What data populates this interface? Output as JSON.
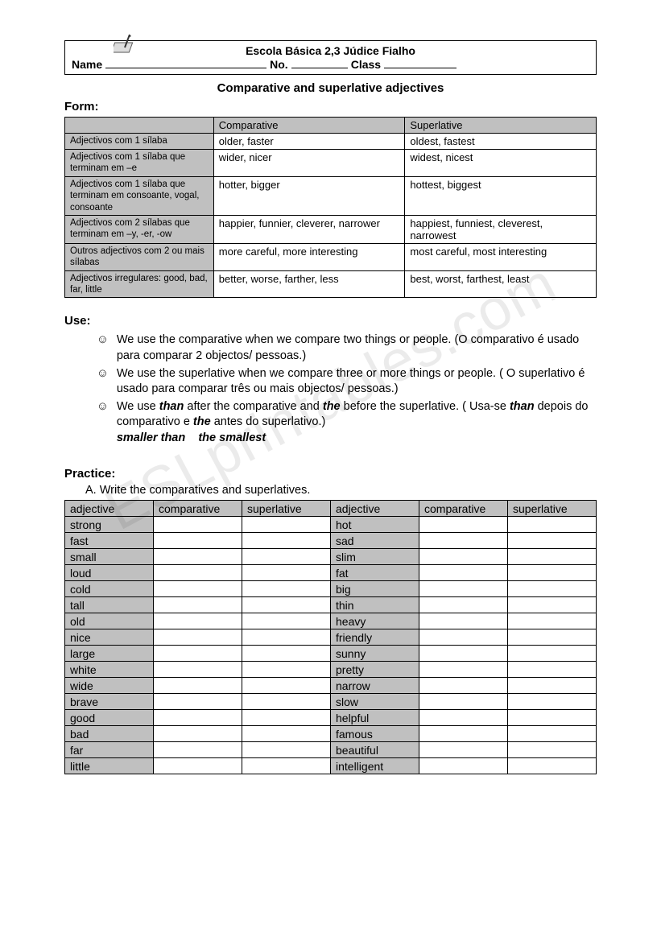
{
  "header": {
    "school": "Escola Básica 2,3 Júdice Fialho",
    "name_label": "Name",
    "no_label": "No.",
    "class_label": "Class"
  },
  "title": "Comparative and superlative adjectives",
  "form": {
    "label": "Form:",
    "columns": [
      "",
      "Comparative",
      "Superlative"
    ],
    "rows": [
      {
        "desc": "Adjectivos com 1 sílaba",
        "comp": "older, faster",
        "sup": "oldest, fastest"
      },
      {
        "desc": "Adjectivos com 1 sílaba que terminam em –e",
        "comp": "wider, nicer",
        "sup": "widest, nicest"
      },
      {
        "desc": "Adjectivos com 1 sílaba que terminam em consoante, vogal, consoante",
        "comp": "hotter, bigger",
        "sup": "hottest, biggest"
      },
      {
        "desc": "Adjectivos com 2 sílabas que terminam em –y, -er, -ow",
        "comp": "happier, funnier, cleverer, narrower",
        "sup": "happiest, funniest, cleverest, narrowest"
      },
      {
        "desc": "Outros adjectivos com 2 ou mais sílabas",
        "comp": "more careful, more interesting",
        "sup": "most careful, most interesting"
      },
      {
        "desc": "Adjectivos irregulares:\ngood, bad, far, little",
        "comp": "better, worse, farther, less",
        "sup": "best, worst, farthest, least"
      }
    ]
  },
  "use": {
    "label": "Use:",
    "items": [
      {
        "text": "We use the comparative when we compare two things or people. (O comparativo é usado para comparar 2 objectos/ pessoas.)"
      },
      {
        "text": "We use the superlative when we compare three or more things or people. ( O superlativo é usado para comparar três ou mais objectos/ pessoas.)"
      },
      {
        "text_html": "We use <em class='it'>than</em> after the comparative and <em class='it'>the</em> before the superlative. ( Usa-se <em class='it'>than</em> depois do comparativo e <em class='it'>the</em> antes do superlativo.)<br><em class='it'>smaller than &nbsp;&nbsp;&nbsp;the smallest</em>"
      }
    ]
  },
  "practice": {
    "label": "Practice:",
    "instruction": "A.  Write the comparatives and superlatives.",
    "headers": [
      "adjective",
      "comparative",
      "superlative",
      "adjective",
      "comparative",
      "superlative"
    ],
    "rows": [
      [
        "strong",
        "",
        "",
        "hot",
        "",
        ""
      ],
      [
        "fast",
        "",
        "",
        "sad",
        "",
        ""
      ],
      [
        "small",
        "",
        "",
        "slim",
        "",
        ""
      ],
      [
        "loud",
        "",
        "",
        "fat",
        "",
        ""
      ],
      [
        "cold",
        "",
        "",
        "big",
        "",
        ""
      ],
      [
        "tall",
        "",
        "",
        "thin",
        "",
        ""
      ],
      [
        "old",
        "",
        "",
        "heavy",
        "",
        ""
      ],
      [
        "nice",
        "",
        "",
        "friendly",
        "",
        ""
      ],
      [
        "large",
        "",
        "",
        "sunny",
        "",
        ""
      ],
      [
        "white",
        "",
        "",
        "pretty",
        "",
        ""
      ],
      [
        "wide",
        "",
        "",
        "narrow",
        "",
        ""
      ],
      [
        "brave",
        "",
        "",
        "slow",
        "",
        ""
      ],
      [
        "good",
        "",
        "",
        "helpful",
        "",
        ""
      ],
      [
        "bad",
        "",
        "",
        "famous",
        "",
        ""
      ],
      [
        "far",
        "",
        "",
        "beautiful",
        "",
        ""
      ],
      [
        "little",
        "",
        "",
        "intelligent",
        "",
        ""
      ]
    ]
  },
  "watermark": "ESLprintables.com",
  "colors": {
    "gray": "#c0c0c0",
    "text": "#000000",
    "bg": "#ffffff",
    "watermark": "rgba(0,0,0,0.08)"
  }
}
